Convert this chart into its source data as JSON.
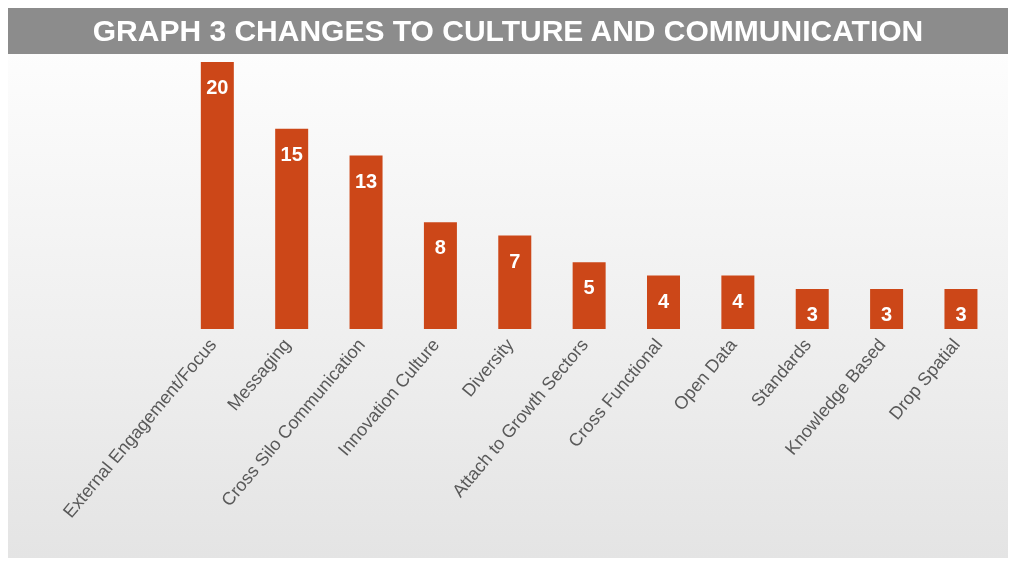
{
  "chart_data": {
    "type": "bar",
    "title": "GRAPH 3 CHANGES TO CULTURE AND COMMUNICATION",
    "categories": [
      "External Engagement/Focus",
      "Messaging",
      "Cross Silo Communication",
      "Innovation Culture",
      "Diversity",
      "Attach to Growth Sectors",
      "Cross Functional",
      "Open Data",
      "Standards",
      "Knowledge Based",
      "Drop Spatial"
    ],
    "values": [
      20,
      15,
      13,
      8,
      7,
      5,
      4,
      4,
      3,
      3,
      3
    ],
    "color": "#cc4718",
    "data_labels": true
  }
}
